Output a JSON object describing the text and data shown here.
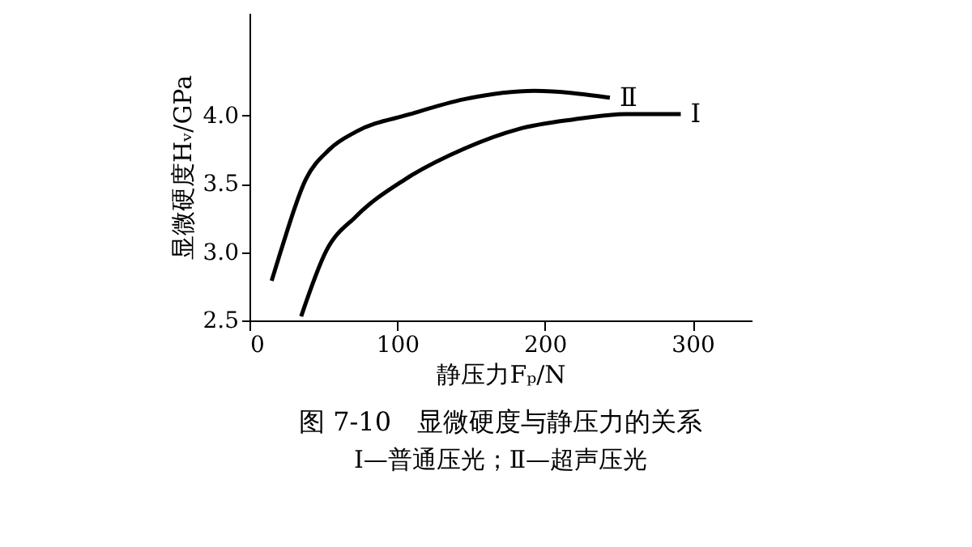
{
  "chart_data": {
    "type": "line",
    "title": "图 7-10　显微硬度与静压力的关系",
    "subtitle": "Ⅰ—普通压光；Ⅱ—超声压光",
    "xlabel": "静压力Fₚ/N",
    "ylabel": "显微硬度Hᵥ/GPa",
    "xlim": [
      0,
      340
    ],
    "ylim": [
      2.5,
      4.75
    ],
    "xticks": [
      0,
      100,
      200,
      300
    ],
    "yticks": [
      2.5,
      {
        "value": 3,
        "label": "3.0"
      },
      3.5,
      {
        "value": 4,
        "label": "4.0"
      }
    ],
    "marker": "none",
    "line_style": "solid",
    "series": [
      {
        "name": "Ⅱ",
        "color": "#000000",
        "x": [
          15,
          21,
          38,
          54,
          72,
          109,
          146,
          193,
          244
        ],
        "values": [
          2.79,
          3.0,
          3.53,
          3.75,
          3.88,
          4.01,
          4.12,
          4.18,
          4.13
        ]
      },
      {
        "name": "Ⅰ",
        "color": "#000000",
        "x": [
          35,
          52,
          72,
          105,
          146,
          182,
          219,
          255,
          292
        ],
        "values": [
          2.53,
          3.01,
          3.26,
          3.53,
          3.76,
          3.9,
          3.97,
          4.01,
          4.01
        ]
      }
    ]
  }
}
